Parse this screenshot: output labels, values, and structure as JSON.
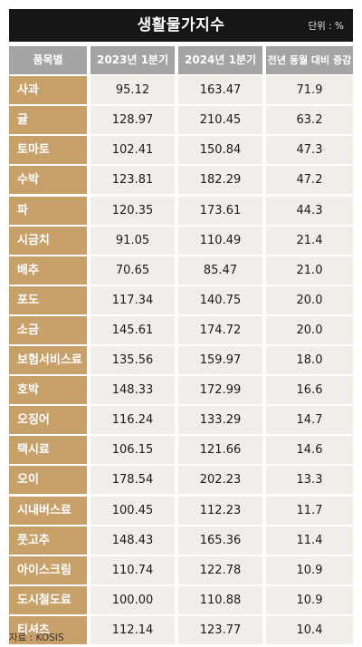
{
  "header": {
    "title": "생활물가지수",
    "unit": "단위 : %"
  },
  "chart_data": {
    "type": "table",
    "columns": [
      "품목별",
      "2023년 1분기",
      "2024년 1분기",
      "전년 동월 대비 증감률"
    ],
    "rows": [
      [
        "사과",
        "95.12",
        "163.47",
        "71.9"
      ],
      [
        "귤",
        "128.97",
        "210.45",
        "63.2"
      ],
      [
        "토마토",
        "102.41",
        "150.84",
        "47.3"
      ],
      [
        "수박",
        "123.81",
        "182.29",
        "47.2"
      ],
      [
        "파",
        "120.35",
        "173.61",
        "44.3"
      ],
      [
        "시금치",
        "91.05",
        "110.49",
        "21.4"
      ],
      [
        "배추",
        "70.65",
        "85.47",
        "21.0"
      ],
      [
        "포도",
        "117.34",
        "140.75",
        "20.0"
      ],
      [
        "소금",
        "145.61",
        "174.72",
        "20.0"
      ],
      [
        "보험서비스료",
        "135.56",
        "159.97",
        "18.0"
      ],
      [
        "호박",
        "148.33",
        "172.99",
        "16.6"
      ],
      [
        "오징어",
        "116.24",
        "133.29",
        "14.7"
      ],
      [
        "택시료",
        "106.15",
        "121.66",
        "14.6"
      ],
      [
        "오이",
        "178.54",
        "202.23",
        "13.3"
      ],
      [
        "시내버스료",
        "100.45",
        "112.23",
        "11.7"
      ],
      [
        "풋고추",
        "148.43",
        "165.36",
        "11.4"
      ],
      [
        "아이스크림",
        "110.74",
        "122.78",
        "10.9"
      ],
      [
        "도시철도료",
        "100.00",
        "110.88",
        "10.9"
      ],
      [
        "티셔츠",
        "112.14",
        "123.77",
        "10.4"
      ]
    ]
  },
  "source": "자료 : KOSIS",
  "colors": {
    "header_bg": "#161616",
    "item_bg": "#c8a06a",
    "col_head_bg": "#a5a3a4",
    "cell_bg": "#f1eeea"
  }
}
